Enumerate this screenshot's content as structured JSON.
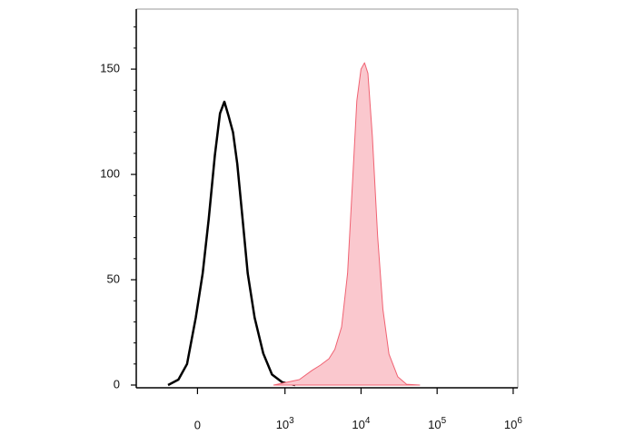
{
  "chart_data": {
    "type": "histogram-overlay",
    "xscale": "biexponential",
    "xlim": [
      -700,
      1150000
    ],
    "ylim": [
      -1.3,
      178.5
    ],
    "xticks": [
      0,
      {
        "value": 1000,
        "label": "10",
        "exponent": "3"
      },
      {
        "value": 10000,
        "label": "10",
        "exponent": "4"
      },
      {
        "value": 100000,
        "label": "10",
        "exponent": "5"
      },
      {
        "value": 1000000,
        "label": "10",
        "exponent": "6"
      }
    ],
    "yticks": [
      0,
      50,
      100,
      150
    ],
    "yminorticks": [
      10,
      20,
      30,
      40,
      60,
      70,
      80,
      90,
      110,
      120,
      130,
      140,
      160,
      170
    ],
    "series": [
      {
        "color": "#000000",
        "fill": "none",
        "x": [
          -337,
          -218,
          -119,
          -20,
          59,
          129,
          198,
          257,
          307,
          356,
          406,
          455,
          515,
          574,
          653,
          752,
          851,
          970,
          1360
        ],
        "values": [
          0,
          2.6,
          10,
          32,
          53,
          79,
          109,
          129,
          134.5,
          127.6,
          120,
          105,
          79,
          53,
          32,
          15,
          5,
          1.3,
          0
        ]
      },
      {
        "color": "#f06272",
        "fill": "#fac8ce",
        "x": [
          871,
          1545,
          2270,
          2930,
          3780,
          4530,
          5550,
          6640,
          7740,
          8800,
          10000,
          11120,
          12300,
          14100,
          16500,
          19400,
          23300,
          30400,
          39600,
          59000
        ],
        "values": [
          0,
          2.6,
          7,
          9.5,
          12.5,
          17,
          27.6,
          53,
          96.6,
          135,
          150,
          153,
          148,
          118,
          70.7,
          36,
          14.7,
          3.9,
          0.4,
          0
        ]
      }
    ]
  }
}
